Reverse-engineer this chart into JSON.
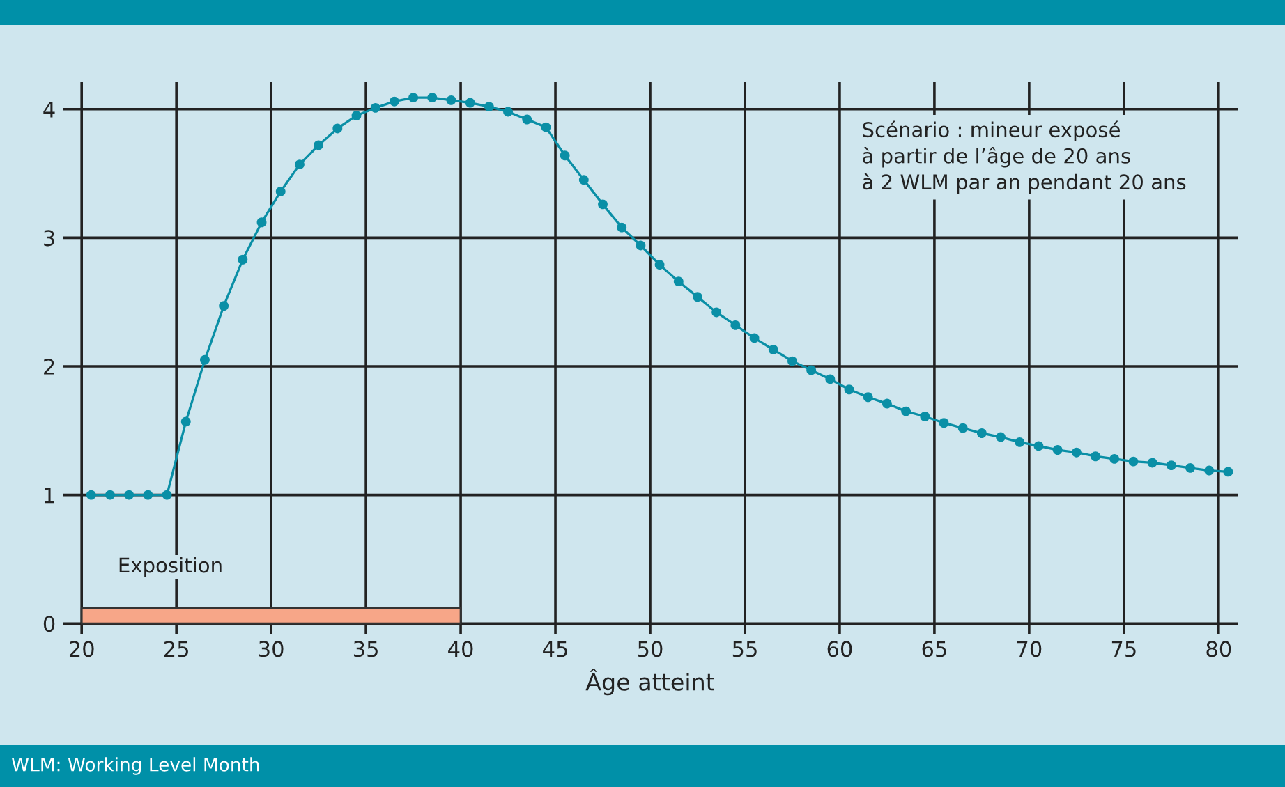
{
  "chart_data": {
    "type": "line",
    "xlabel": "Âge atteint",
    "x": [
      20.5,
      21.5,
      22.5,
      23.5,
      24.5,
      25.5,
      26.5,
      27.5,
      28.5,
      29.5,
      30.5,
      31.5,
      32.5,
      33.5,
      34.5,
      35.5,
      36.5,
      37.5,
      38.5,
      39.5,
      40.5,
      41.5,
      42.5,
      43.5,
      44.5,
      45.5,
      46.5,
      47.5,
      48.5,
      49.5,
      50.5,
      51.5,
      52.5,
      53.5,
      54.5,
      55.5,
      56.5,
      57.5,
      58.5,
      59.5,
      60.5,
      61.5,
      62.5,
      63.5,
      64.5,
      65.5,
      66.5,
      67.5,
      68.5,
      69.5,
      70.5,
      71.5,
      72.5,
      73.5,
      74.5,
      75.5,
      76.5,
      77.5,
      78.5,
      79.5,
      80.5
    ],
    "series": [
      {
        "color": "#0a8fa6",
        "marker": "circle",
        "values": [
          1,
          1,
          1,
          1,
          1,
          1.57,
          2.05,
          2.47,
          2.83,
          3.12,
          3.36,
          3.57,
          3.72,
          3.85,
          3.95,
          4.01,
          4.06,
          4.09,
          4.09,
          4.07,
          4.05,
          4.02,
          3.98,
          3.92,
          3.86,
          3.64,
          3.45,
          3.26,
          3.08,
          2.94,
          2.79,
          2.66,
          2.54,
          2.42,
          2.32,
          2.22,
          2.13,
          2.04,
          1.97,
          1.9,
          1.82,
          1.76,
          1.71,
          1.65,
          1.61,
          1.56,
          1.52,
          1.48,
          1.45,
          1.41,
          1.38,
          1.35,
          1.33,
          1.3,
          1.28,
          1.26,
          1.25,
          1.23,
          1.21,
          1.19,
          1.18
        ]
      },
      {
        "type": "area",
        "name": "Exposition",
        "color": "#f7a688",
        "x": [
          20,
          40
        ],
        "values": [
          0.12,
          0.12
        ]
      }
    ],
    "xlim": [
      19,
      81
    ],
    "ylim": [
      -0.08,
      4.21
    ],
    "xticks": [
      20,
      25,
      30,
      35,
      40,
      45,
      50,
      55,
      60,
      65,
      70,
      75,
      80
    ],
    "yticks": [
      0,
      1,
      2,
      3,
      4
    ],
    "grid": true,
    "line_style": "solid",
    "legend": false,
    "annotations": [
      "Scénario : mineur exposé\nà partir de l’âge de 20 ans\nà 2 WLM par an pendant 20 ans",
      "WLM: Working Level Month"
    ]
  }
}
